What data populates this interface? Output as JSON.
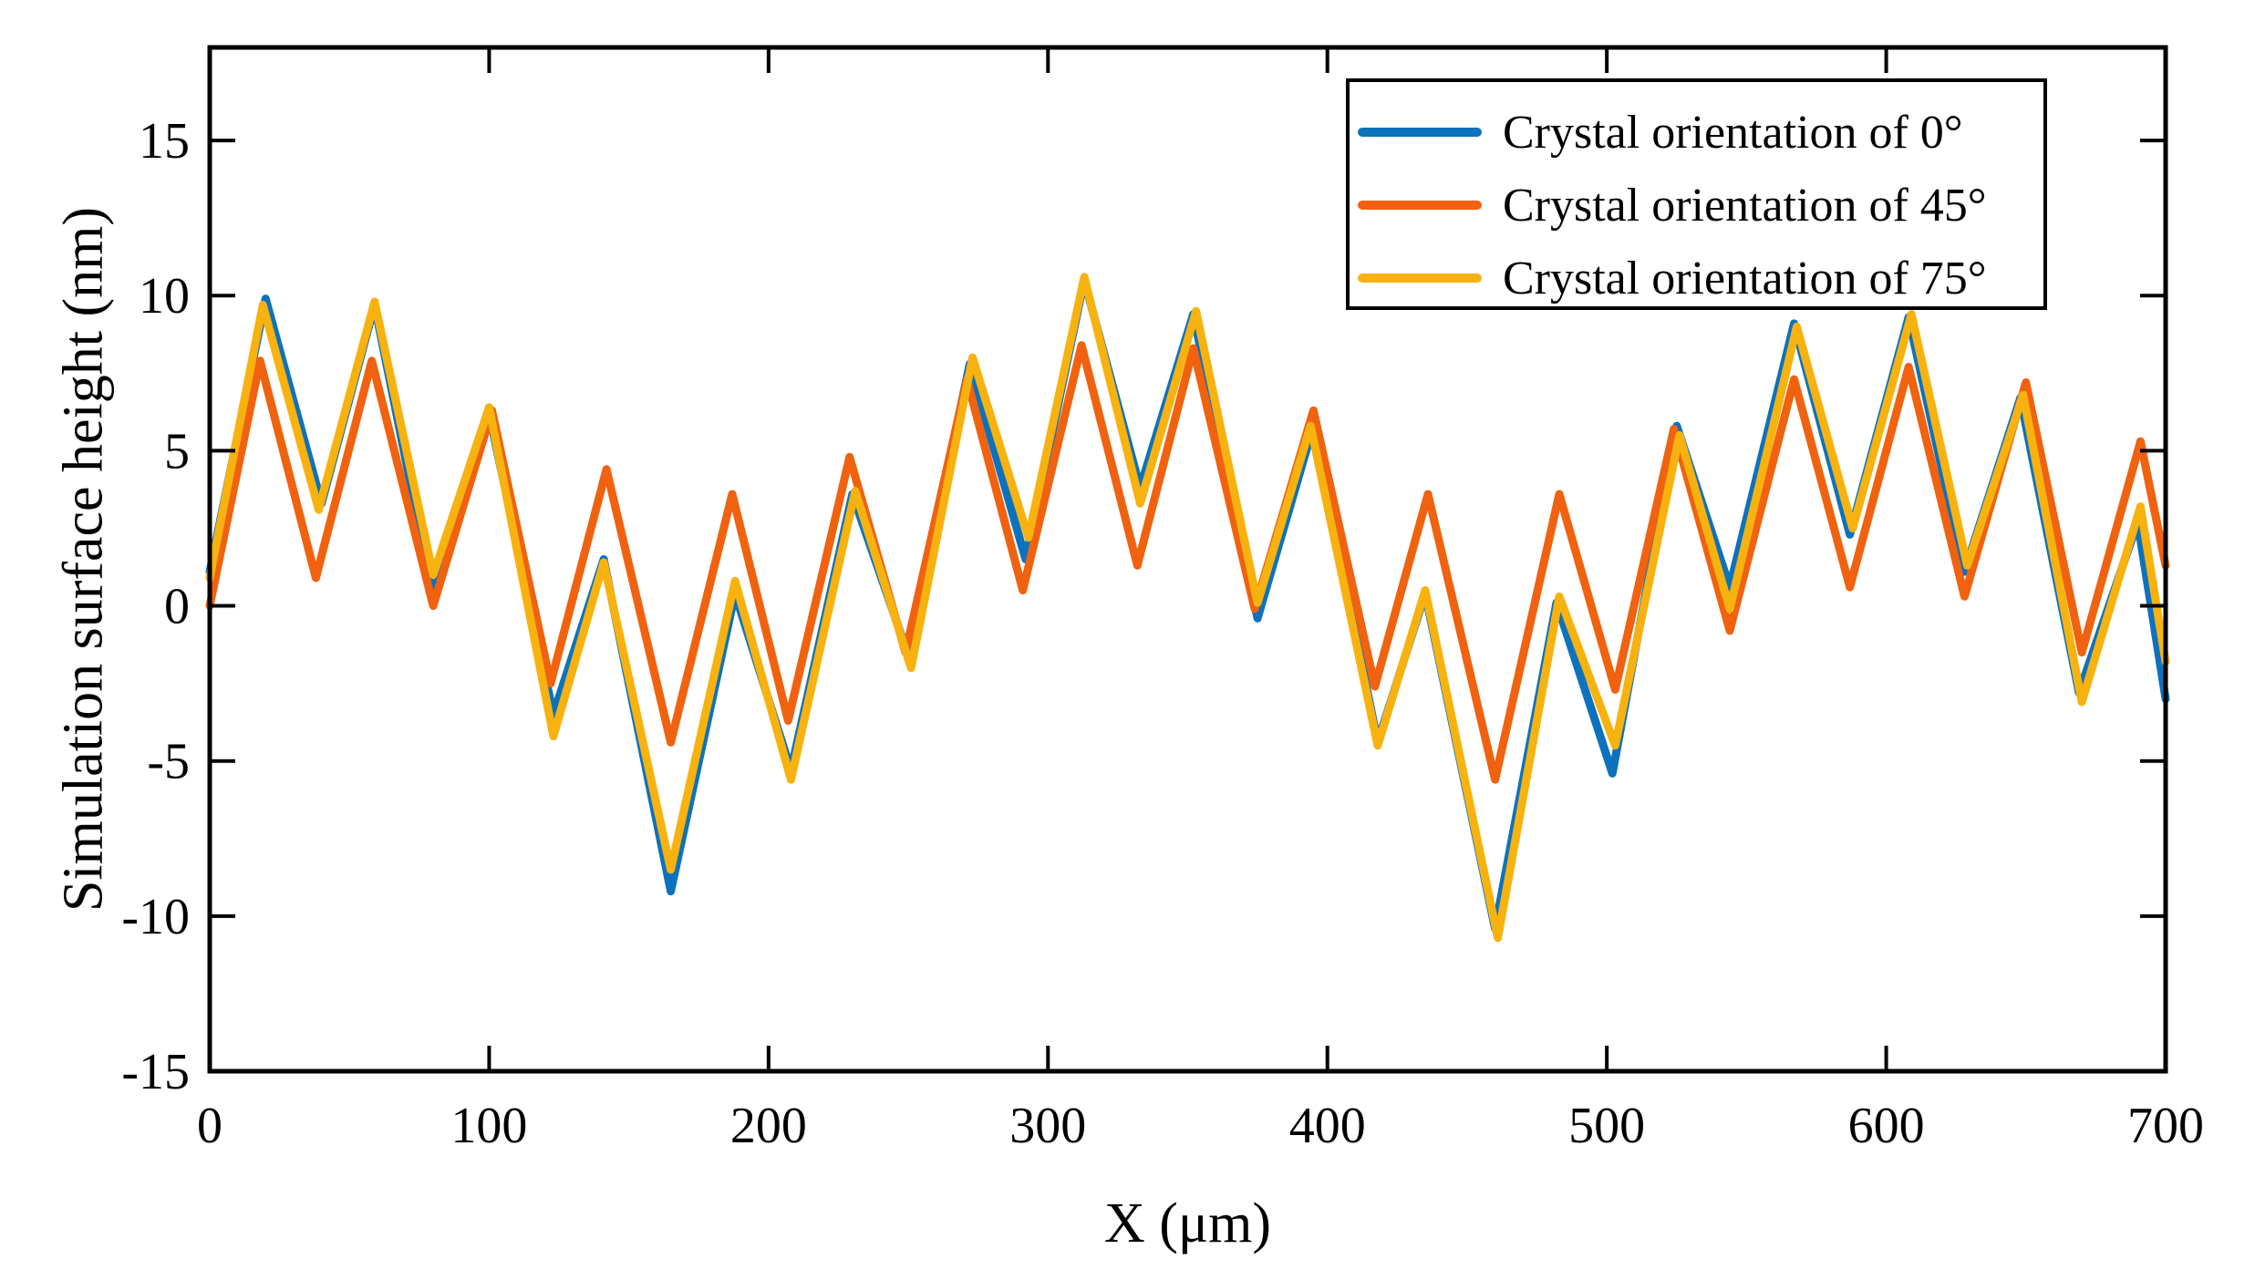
{
  "chart_data": {
    "type": "line",
    "title": "",
    "xlabel": "X (μm)",
    "ylabel": "Simulation surface height (nm)",
    "xlim": [
      0,
      700
    ],
    "ylim": [
      -15,
      18
    ],
    "xticks": [
      0,
      100,
      200,
      300,
      400,
      500,
      600,
      700
    ],
    "yticks": [
      -15,
      -10,
      -5,
      0,
      5,
      10,
      15
    ],
    "xtick_labels": [
      "0",
      "100",
      "200",
      "300",
      "400",
      "500",
      "600",
      "700"
    ],
    "ytick_labels": [
      "-15",
      "-10",
      "-5",
      "0",
      "5",
      "10",
      "15"
    ],
    "grid": false,
    "legend_position": "top-right",
    "series": [
      {
        "name": "Crystal orientation of 0°",
        "color": "#0c72bd",
        "points": [
          [
            0,
            1.1
          ],
          [
            20,
            9.9
          ],
          [
            40,
            3.3
          ],
          [
            59,
            9.7
          ],
          [
            80,
            0.3
          ],
          [
            100,
            6.2
          ],
          [
            123,
            -3.5
          ],
          [
            141,
            1.5
          ],
          [
            165,
            -9.2
          ],
          [
            188,
            0.4
          ],
          [
            208,
            -5.3
          ],
          [
            230,
            3.6
          ],
          [
            250,
            -1.6
          ],
          [
            272,
            7.8
          ],
          [
            292,
            1.5
          ],
          [
            313,
            10.5
          ],
          [
            333,
            3.8
          ],
          [
            352,
            9.4
          ],
          [
            375,
            -0.4
          ],
          [
            395,
            5.8
          ],
          [
            418,
            -4.4
          ],
          [
            435,
            0.4
          ],
          [
            460,
            -10.4
          ],
          [
            482,
            0.1
          ],
          [
            502,
            -5.4
          ],
          [
            525,
            5.8
          ],
          [
            544,
            0.6
          ],
          [
            567,
            9.1
          ],
          [
            587,
            2.3
          ],
          [
            608,
            9.3
          ],
          [
            628,
            1.1
          ],
          [
            648,
            6.7
          ],
          [
            669,
            -2.8
          ],
          [
            690,
            2.7
          ],
          [
            700,
            -3.0
          ]
        ]
      },
      {
        "name": "Crystal orientation of 45°",
        "color": "#f0620f",
        "points": [
          [
            0,
            0.0
          ],
          [
            18,
            7.9
          ],
          [
            38,
            0.9
          ],
          [
            58,
            7.9
          ],
          [
            80,
            0.0
          ],
          [
            101,
            6.3
          ],
          [
            122,
            -2.5
          ],
          [
            142,
            4.4
          ],
          [
            165,
            -4.4
          ],
          [
            187,
            3.6
          ],
          [
            207,
            -3.7
          ],
          [
            229,
            4.8
          ],
          [
            249,
            -1.5
          ],
          [
            271,
            7.3
          ],
          [
            291,
            0.5
          ],
          [
            312,
            8.4
          ],
          [
            332,
            1.3
          ],
          [
            352,
            8.3
          ],
          [
            374,
            -0.1
          ],
          [
            395,
            6.3
          ],
          [
            417,
            -2.6
          ],
          [
            436,
            3.6
          ],
          [
            460,
            -5.6
          ],
          [
            483,
            3.6
          ],
          [
            503,
            -2.7
          ],
          [
            524,
            5.7
          ],
          [
            544,
            -0.8
          ],
          [
            567,
            7.3
          ],
          [
            587,
            0.6
          ],
          [
            608,
            7.7
          ],
          [
            628,
            0.3
          ],
          [
            650,
            7.2
          ],
          [
            670,
            -1.5
          ],
          [
            691,
            5.3
          ],
          [
            700,
            1.3
          ]
        ]
      },
      {
        "name": "Crystal orientation of 75°",
        "color": "#f8b20f",
        "points": [
          [
            0,
            0.9
          ],
          [
            19,
            9.7
          ],
          [
            39,
            3.1
          ],
          [
            59,
            9.8
          ],
          [
            80,
            1.0
          ],
          [
            100,
            6.4
          ],
          [
            123,
            -4.2
          ],
          [
            141,
            1.4
          ],
          [
            165,
            -8.5
          ],
          [
            188,
            0.8
          ],
          [
            208,
            -5.6
          ],
          [
            231,
            3.7
          ],
          [
            251,
            -2.0
          ],
          [
            273,
            8.0
          ],
          [
            293,
            2.2
          ],
          [
            313,
            10.6
          ],
          [
            333,
            3.3
          ],
          [
            353,
            9.5
          ],
          [
            375,
            0.1
          ],
          [
            394,
            5.8
          ],
          [
            418,
            -4.5
          ],
          [
            435,
            0.5
          ],
          [
            461,
            -10.7
          ],
          [
            483,
            0.3
          ],
          [
            503,
            -4.5
          ],
          [
            526,
            5.5
          ],
          [
            544,
            -0.1
          ],
          [
            568,
            9.0
          ],
          [
            588,
            2.5
          ],
          [
            609,
            9.4
          ],
          [
            629,
            1.3
          ],
          [
            649,
            6.8
          ],
          [
            670,
            -3.1
          ],
          [
            691,
            3.2
          ],
          [
            700,
            -1.8
          ]
        ]
      }
    ]
  }
}
